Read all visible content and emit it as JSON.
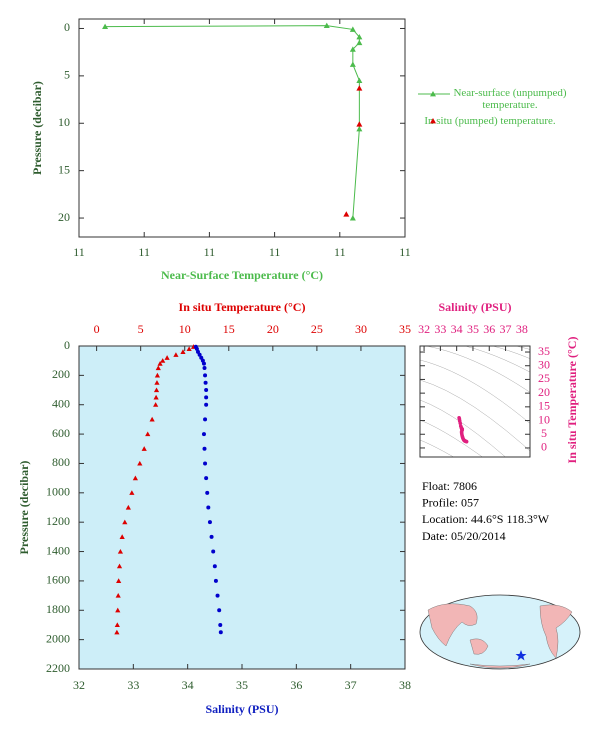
{
  "chart_data": [
    {
      "type": "line",
      "x_label": "Near-Surface Temperature (°C)",
      "y_label": "Pressure (decibar)",
      "xlim": [
        10.8,
        11.3
      ],
      "xticks": [
        {
          "value": 10.8,
          "label": "11"
        },
        {
          "value": 10.9,
          "label": "11"
        },
        {
          "value": 11.0,
          "label": "11"
        },
        {
          "value": 11.1,
          "label": "11"
        },
        {
          "value": 11.2,
          "label": "11"
        },
        {
          "value": 11.3,
          "label": "11"
        }
      ],
      "ylim": [
        -1,
        22
      ],
      "yticks": [
        0,
        5,
        10,
        15,
        20
      ],
      "series": [
        {
          "name": "Near-surface (unpumped) temperature.",
          "color": "#4cbb4c",
          "marker": "triangle",
          "line": true,
          "x": [
            10.84,
            11.18,
            11.22,
            11.23,
            11.23,
            11.22,
            11.22,
            11.23,
            11.23,
            11.22
          ],
          "values": [
            -0.2,
            -0.3,
            0.1,
            0.9,
            1.5,
            2.2,
            3.8,
            5.5,
            10.6,
            20.0
          ]
        },
        {
          "name": "In situ (pumped) temperature.",
          "color": "#dd0000",
          "marker": "triangle",
          "line": false,
          "x": [
            11.23,
            11.23,
            11.21
          ],
          "values": [
            6.3,
            10.1,
            19.6
          ]
        }
      ]
    },
    {
      "type": "scatter",
      "x_label": "Salinity (PSU)",
      "x2_label": "In situ Temperature (°C)",
      "y_label": "Pressure (decibar)",
      "xlim": [
        32,
        38
      ],
      "xticks": [
        32,
        33,
        34,
        35,
        36,
        37,
        38
      ],
      "x2lim": [
        -2,
        35
      ],
      "x2ticks": [
        0,
        5,
        10,
        15,
        20,
        25,
        30,
        35
      ],
      "ylim": [
        0,
        2200
      ],
      "yticks": [
        0,
        200,
        400,
        600,
        800,
        1000,
        1200,
        1400,
        1600,
        1800,
        2000,
        2200
      ],
      "background": "#cdeef8",
      "series": [
        {
          "color": "#dd0000",
          "marker": "triangle",
          "axis": "x2",
          "x": [
            11.0,
            10.5,
            9.8,
            9.0,
            8.0,
            7.5,
            7.2,
            7.0,
            6.9,
            6.85,
            6.8,
            6.75,
            6.7,
            6.3,
            5.8,
            5.4,
            4.9,
            4.4,
            4.0,
            3.6,
            3.2,
            2.9,
            2.7,
            2.6,
            2.5,
            2.45,
            2.4,
            2.35,
            2.3
          ],
          "values": [
            5,
            20,
            40,
            60,
            80,
            100,
            120,
            150,
            200,
            250,
            300,
            350,
            400,
            500,
            600,
            700,
            800,
            900,
            1000,
            1100,
            1200,
            1300,
            1400,
            1500,
            1600,
            1700,
            1800,
            1900,
            1950
          ]
        },
        {
          "color": "#0000cc",
          "marker": "dot",
          "axis": "x",
          "x": [
            34.15,
            34.17,
            34.19,
            34.22,
            34.25,
            34.28,
            34.3,
            34.31,
            34.32,
            34.33,
            34.34,
            34.34,
            34.34,
            34.32,
            34.3,
            34.31,
            34.32,
            34.34,
            34.36,
            34.38,
            34.41,
            34.44,
            34.47,
            34.5,
            34.52,
            34.55,
            34.58,
            34.6,
            34.61
          ],
          "values": [
            5,
            20,
            40,
            60,
            80,
            100,
            120,
            150,
            200,
            250,
            300,
            350,
            400,
            500,
            600,
            700,
            800,
            900,
            1000,
            1100,
            1200,
            1300,
            1400,
            1500,
            1600,
            1700,
            1800,
            1900,
            1950
          ]
        }
      ]
    },
    {
      "type": "ts",
      "x_label": "Salinity (PSU)",
      "y_label": "In situ Temperature (°C)",
      "color": "#e0207f",
      "xlim": [
        31.75,
        38.5
      ],
      "xticks": [
        32,
        33,
        34,
        35,
        36,
        37,
        38
      ],
      "ylim": [
        -3.3,
        37.2
      ],
      "yticks": [
        0,
        5,
        10,
        15,
        20,
        25,
        30,
        35
      ]
    }
  ],
  "info": [
    "Float:  7806",
    "Profile:  057",
    "Location:  44.6°S  118.3°W",
    "Date:  05/20/2014"
  ]
}
